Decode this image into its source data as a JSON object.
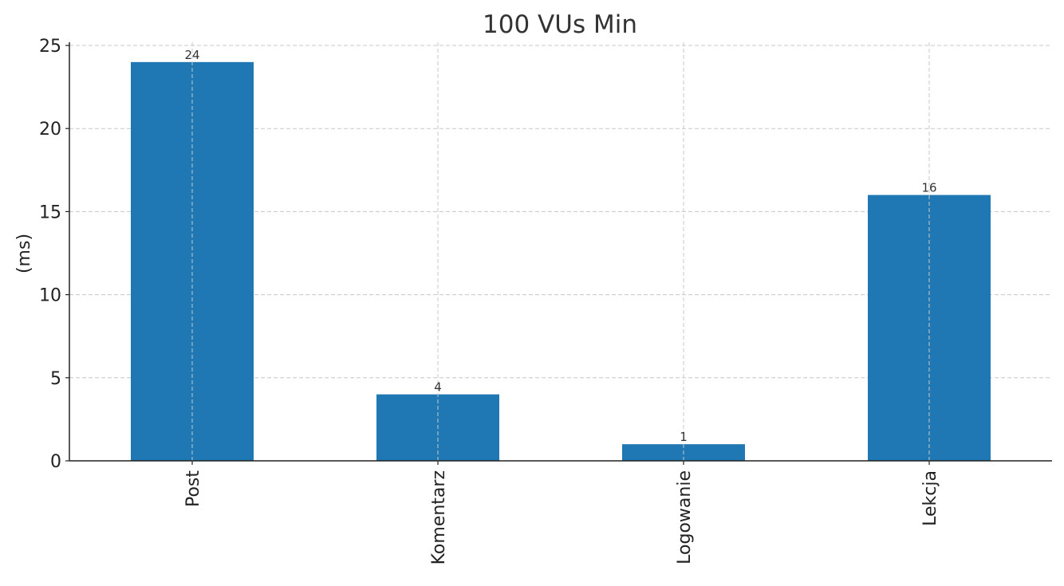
{
  "chart_data": {
    "type": "bar",
    "title": "100 VUs Min",
    "xlabel": "",
    "ylabel": "(ms)",
    "categories": [
      "Post",
      "Komentarz",
      "Logowanie",
      "Lekcja"
    ],
    "values": [
      24,
      4,
      1,
      16
    ],
    "data_labels": [
      "24",
      "4",
      "1",
      "16"
    ],
    "ylim": [
      0,
      25
    ],
    "yticks": [
      0,
      5,
      10,
      15,
      20,
      25
    ],
    "ytick_labels": [
      "0",
      "5",
      "10",
      "15",
      "20",
      "25"
    ],
    "grid": true,
    "bar_color": "#1f77b4",
    "x_tick_rotation": "vertical"
  }
}
